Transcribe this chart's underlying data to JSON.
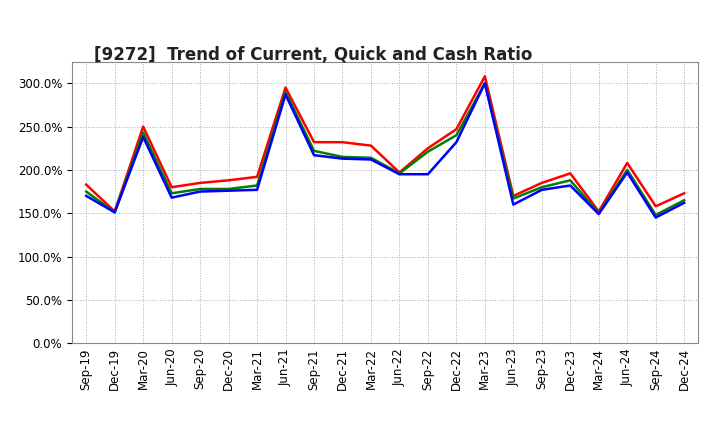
{
  "title": "[9272]  Trend of Current, Quick and Cash Ratio",
  "x_labels": [
    "Sep-19",
    "Dec-19",
    "Mar-20",
    "Jun-20",
    "Sep-20",
    "Dec-20",
    "Mar-21",
    "Jun-21",
    "Sep-21",
    "Dec-21",
    "Mar-22",
    "Jun-22",
    "Sep-22",
    "Dec-22",
    "Mar-23",
    "Jun-23",
    "Sep-23",
    "Dec-23",
    "Mar-24",
    "Jun-24",
    "Sep-24",
    "Dec-24"
  ],
  "current_ratio": [
    183,
    152,
    250,
    180,
    185,
    188,
    192,
    295,
    232,
    232,
    228,
    197,
    225,
    247,
    308,
    170,
    185,
    196,
    152,
    208,
    158,
    173
  ],
  "quick_ratio": [
    175,
    151,
    243,
    173,
    178,
    178,
    182,
    290,
    222,
    215,
    214,
    196,
    221,
    240,
    300,
    167,
    180,
    188,
    150,
    200,
    148,
    165
  ],
  "cash_ratio": [
    170,
    151,
    238,
    168,
    175,
    176,
    177,
    287,
    217,
    213,
    212,
    195,
    195,
    232,
    300,
    160,
    177,
    182,
    149,
    197,
    145,
    162
  ],
  "current_color": "#FF0000",
  "quick_color": "#008000",
  "cash_color": "#0000FF",
  "line_width": 1.8,
  "ylim": [
    0,
    325
  ],
  "yticks": [
    0,
    50,
    100,
    150,
    200,
    250,
    300
  ],
  "background_color": "#FFFFFF",
  "plot_bg_color": "#FFFFFF",
  "grid_color": "#AAAAAA",
  "title_fontsize": 12,
  "legend_fontsize": 9.5,
  "tick_fontsize": 8.5
}
